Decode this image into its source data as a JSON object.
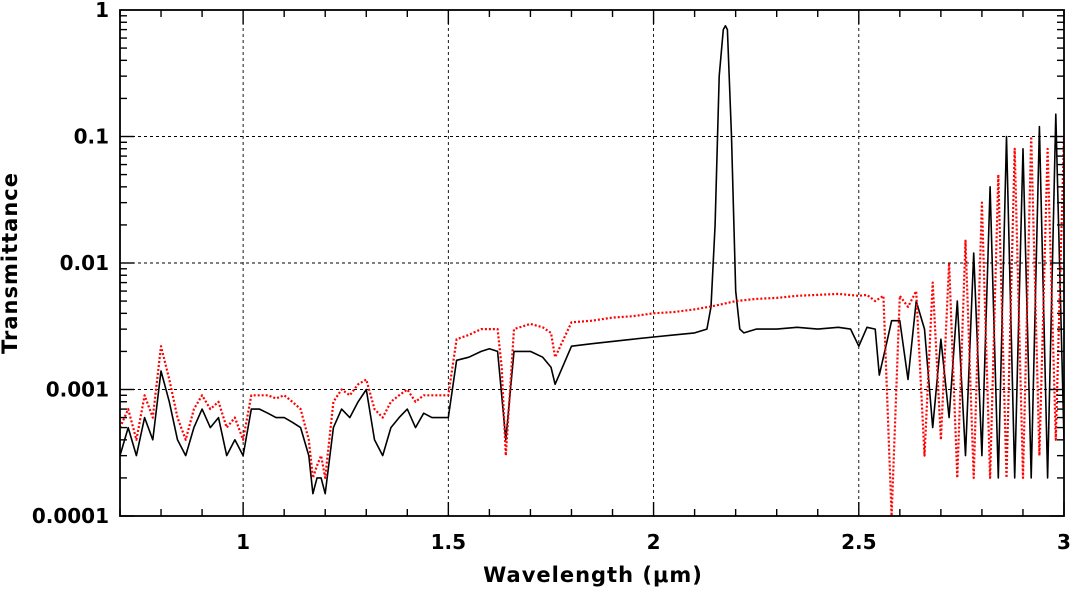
{
  "chart_data": {
    "type": "line",
    "title": "",
    "xlabel": "Wavelength (μm)",
    "ylabel": "Transmittance",
    "xlim": [
      0.7,
      3.0
    ],
    "ylim": [
      0.0001,
      1
    ],
    "yscale": "log",
    "grid": true,
    "x_ticks": [
      1,
      1.5,
      2,
      2.5,
      3
    ],
    "x_tick_labels": [
      "1",
      "1.5",
      "2",
      "2.5",
      "3"
    ],
    "y_ticks": [
      0.0001,
      0.001,
      0.01,
      0.1,
      1
    ],
    "y_tick_labels": [
      "0.0001",
      "0.001",
      "0.01",
      "0.1",
      "1"
    ],
    "series": [
      {
        "color": "#000000",
        "style": "solid",
        "x": [
          0.7,
          0.72,
          0.74,
          0.76,
          0.78,
          0.8,
          0.82,
          0.84,
          0.86,
          0.88,
          0.9,
          0.92,
          0.94,
          0.96,
          0.98,
          1.0,
          1.02,
          1.04,
          1.06,
          1.08,
          1.1,
          1.12,
          1.14,
          1.16,
          1.17,
          1.18,
          1.19,
          1.2,
          1.22,
          1.24,
          1.26,
          1.28,
          1.3,
          1.32,
          1.34,
          1.36,
          1.38,
          1.4,
          1.42,
          1.44,
          1.46,
          1.48,
          1.5,
          1.52,
          1.55,
          1.58,
          1.6,
          1.62,
          1.63,
          1.64,
          1.66,
          1.7,
          1.73,
          1.75,
          1.76,
          1.8,
          1.85,
          1.9,
          1.95,
          2.0,
          2.05,
          2.1,
          2.13,
          2.14,
          2.15,
          2.16,
          2.17,
          2.175,
          2.18,
          2.19,
          2.2,
          2.21,
          2.22,
          2.25,
          2.3,
          2.35,
          2.4,
          2.45,
          2.48,
          2.5,
          2.52,
          2.54,
          2.55,
          2.57,
          2.58,
          2.6,
          2.62,
          2.64,
          2.66,
          2.68,
          2.7,
          2.72,
          2.74,
          2.76,
          2.78,
          2.8,
          2.82,
          2.84,
          2.86,
          2.88,
          2.9,
          2.92,
          2.94,
          2.96,
          2.98,
          3.0
        ],
        "y": [
          0.0003,
          0.0005,
          0.0003,
          0.0006,
          0.0004,
          0.0014,
          0.0008,
          0.0004,
          0.0003,
          0.0005,
          0.0007,
          0.0005,
          0.0006,
          0.0003,
          0.0004,
          0.0003,
          0.0007,
          0.0007,
          0.00065,
          0.0006,
          0.0006,
          0.00055,
          0.0005,
          0.0003,
          0.00015,
          0.0002,
          0.0002,
          0.00015,
          0.0005,
          0.0007,
          0.0006,
          0.0008,
          0.001,
          0.0004,
          0.0003,
          0.0005,
          0.0006,
          0.0007,
          0.0005,
          0.00065,
          0.0006,
          0.0006,
          0.0006,
          0.0017,
          0.0018,
          0.002,
          0.0021,
          0.002,
          0.0009,
          0.0004,
          0.002,
          0.002,
          0.0018,
          0.0015,
          0.0011,
          0.0022,
          0.0023,
          0.0024,
          0.0025,
          0.0026,
          0.0027,
          0.0028,
          0.003,
          0.0045,
          0.02,
          0.3,
          0.7,
          0.75,
          0.7,
          0.1,
          0.006,
          0.003,
          0.0028,
          0.003,
          0.003,
          0.0031,
          0.003,
          0.0031,
          0.003,
          0.0022,
          0.0031,
          0.003,
          0.0013,
          0.0025,
          0.0035,
          0.0035,
          0.0012,
          0.005,
          0.003,
          0.0005,
          0.0025,
          0.0006,
          0.005,
          0.0003,
          0.012,
          0.0003,
          0.04,
          0.0002,
          0.1,
          0.0002,
          0.08,
          0.0002,
          0.12,
          0.0002,
          0.15,
          0.0004
        ],
        "note": ""
      },
      {
        "color": "#ff0000",
        "style": "dotted",
        "x": [
          0.7,
          0.72,
          0.74,
          0.76,
          0.78,
          0.8,
          0.82,
          0.84,
          0.86,
          0.88,
          0.9,
          0.92,
          0.94,
          0.96,
          0.98,
          1.0,
          1.02,
          1.04,
          1.06,
          1.08,
          1.1,
          1.12,
          1.14,
          1.16,
          1.17,
          1.18,
          1.19,
          1.2,
          1.22,
          1.24,
          1.26,
          1.28,
          1.3,
          1.32,
          1.34,
          1.36,
          1.38,
          1.4,
          1.42,
          1.44,
          1.46,
          1.48,
          1.5,
          1.52,
          1.55,
          1.58,
          1.6,
          1.62,
          1.63,
          1.64,
          1.66,
          1.7,
          1.73,
          1.75,
          1.76,
          1.8,
          1.85,
          1.9,
          1.95,
          2.0,
          2.05,
          2.1,
          2.15,
          2.2,
          2.25,
          2.3,
          2.35,
          2.4,
          2.45,
          2.5,
          2.52,
          2.54,
          2.56,
          2.58,
          2.6,
          2.62,
          2.64,
          2.66,
          2.68,
          2.7,
          2.72,
          2.74,
          2.76,
          2.78,
          2.8,
          2.82,
          2.84,
          2.86,
          2.88,
          2.9,
          2.92,
          2.94,
          2.96,
          2.98,
          3.0
        ],
        "y": [
          0.0005,
          0.0007,
          0.0004,
          0.0009,
          0.0006,
          0.0022,
          0.0012,
          0.0006,
          0.0004,
          0.0007,
          0.0009,
          0.0007,
          0.0008,
          0.0005,
          0.0006,
          0.0004,
          0.0009,
          0.0009,
          0.0009,
          0.00085,
          0.0009,
          0.0008,
          0.0007,
          0.0004,
          0.0002,
          0.00025,
          0.0003,
          0.0002,
          0.0008,
          0.001,
          0.0009,
          0.0011,
          0.0012,
          0.0007,
          0.0006,
          0.0008,
          0.0009,
          0.001,
          0.0008,
          0.0009,
          0.0009,
          0.0009,
          0.0009,
          0.0025,
          0.0027,
          0.003,
          0.003,
          0.003,
          0.0015,
          0.0003,
          0.003,
          0.0033,
          0.0031,
          0.0028,
          0.0018,
          0.0034,
          0.0035,
          0.0037,
          0.0038,
          0.004,
          0.0041,
          0.0043,
          0.0046,
          0.005,
          0.0052,
          0.0053,
          0.0055,
          0.0056,
          0.0057,
          0.0055,
          0.0056,
          0.005,
          0.0055,
          0.0001,
          0.0055,
          0.0045,
          0.006,
          0.0003,
          0.007,
          0.0004,
          0.01,
          0.0002,
          0.015,
          0.0002,
          0.03,
          0.0002,
          0.05,
          0.0002,
          0.08,
          0.0002,
          0.1,
          0.0003,
          0.08,
          0.0004,
          0.1
        ]
      }
    ]
  }
}
